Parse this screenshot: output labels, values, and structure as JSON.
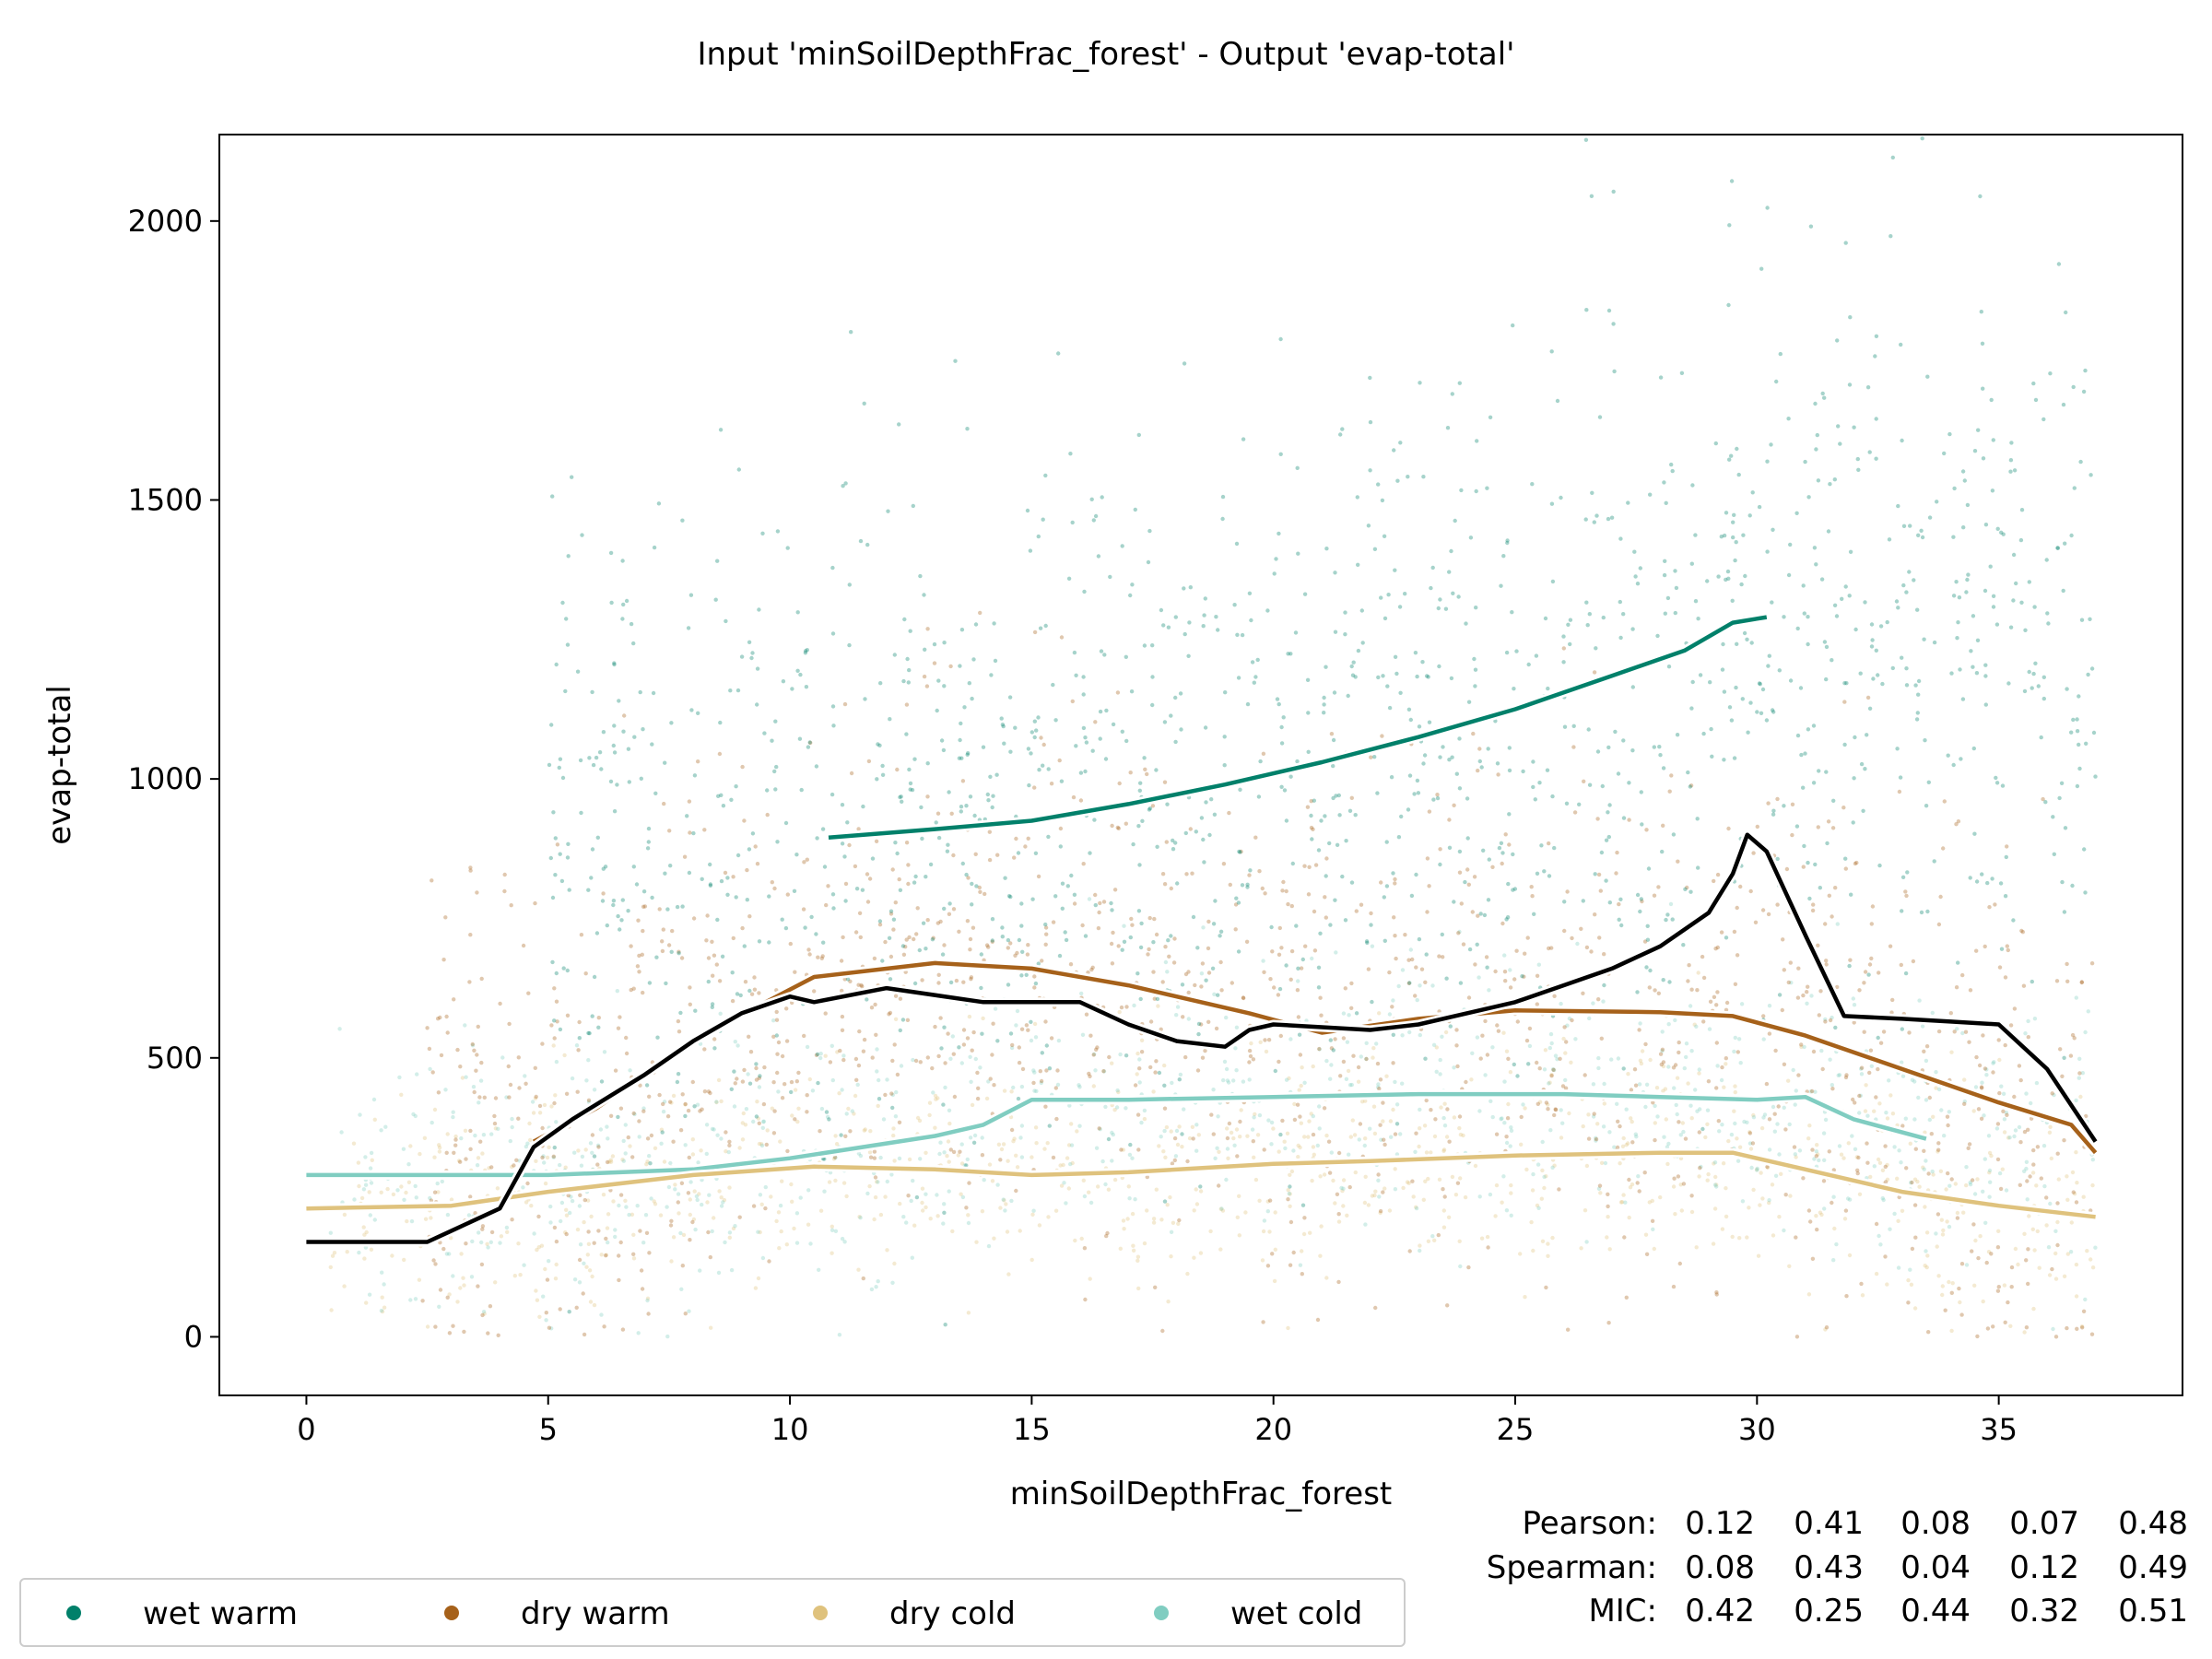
{
  "chart_data": {
    "type": "scatter",
    "title": "Input 'minSoilDepthFrac_forest' - Output 'evap-total'",
    "xlabel": "minSoilDepthFrac_forest",
    "ylabel": "evap-total",
    "xlim": [
      -1.8,
      38.8
    ],
    "ylim": [
      -105,
      2155
    ],
    "xticks": [
      0,
      5,
      10,
      15,
      20,
      25,
      30,
      35
    ],
    "yticks": [
      0,
      500,
      1000,
      1500,
      2000
    ],
    "grid": false,
    "legend_position": "bottom-left",
    "legend": [
      {
        "label": "wet warm",
        "color": "#01806a"
      },
      {
        "label": "dry warm",
        "color": "#a6611a"
      },
      {
        "label": "dry cold",
        "color": "#dfc27d"
      },
      {
        "label": "wet cold",
        "color": "#80cdc1"
      }
    ],
    "overall_color": "#000000",
    "scatter_description_counts": {
      "wet warm": 1400,
      "dry warm": 1400,
      "dry cold": 900,
      "wet cold": 900
    },
    "series": [
      {
        "name": "overall",
        "color": "#000000",
        "x": [
          0,
          2.5,
          3,
          4,
          4.7,
          5.5,
          7,
          8,
          9,
          10,
          10.5,
          12,
          14,
          16,
          17,
          18,
          19,
          19.5,
          20,
          21,
          22,
          23,
          24,
          25,
          26,
          27,
          28,
          29,
          29.5,
          29.8,
          30.2,
          31,
          31.8,
          33,
          34,
          35,
          36,
          37
        ],
        "y": [
          170,
          170,
          190,
          230,
          340,
          390,
          470,
          530,
          580,
          610,
          600,
          625,
          600,
          600,
          560,
          530,
          520,
          550,
          560,
          555,
          550,
          560,
          580,
          600,
          630,
          660,
          700,
          760,
          830,
          900,
          870,
          720,
          575,
          570,
          565,
          560,
          480,
          350
        ]
      },
      {
        "name": "wet warm",
        "color": "#01806a",
        "x": [
          10.8,
          13,
          15,
          17,
          19,
          21,
          23,
          25,
          27,
          28.5,
          29.5,
          30.2
        ],
        "y": [
          895,
          910,
          925,
          955,
          990,
          1030,
          1075,
          1125,
          1185,
          1230,
          1280,
          1290
        ]
      },
      {
        "name": "dry warm",
        "color": "#a6611a",
        "x": [
          4.7,
          6,
          8,
          9.5,
          10.5,
          13,
          15,
          17,
          19.5,
          21,
          23,
          25,
          28,
          29.5,
          31,
          33,
          35,
          36.5,
          37
        ],
        "y": [
          350,
          410,
          530,
          600,
          645,
          670,
          660,
          630,
          580,
          545,
          570,
          585,
          582,
          575,
          540,
          480,
          420,
          380,
          330
        ]
      },
      {
        "name": "dry cold",
        "color": "#dfc27d",
        "x": [
          0,
          3,
          5,
          8,
          10.5,
          13,
          15,
          17,
          20,
          22,
          25,
          28,
          29.5,
          31,
          33,
          35,
          37
        ],
        "y": [
          230,
          235,
          260,
          290,
          305,
          300,
          290,
          295,
          310,
          315,
          325,
          330,
          330,
          300,
          260,
          235,
          215
        ]
      },
      {
        "name": "wet cold",
        "color": "#80cdc1",
        "x": [
          0,
          3,
          5,
          8,
          10,
          13,
          14,
          15,
          17,
          20,
          23,
          26,
          28,
          30,
          31,
          32,
          33.5
        ],
        "y": [
          290,
          290,
          290,
          300,
          320,
          360,
          380,
          425,
          425,
          430,
          435,
          435,
          430,
          425,
          430,
          390,
          355
        ]
      }
    ],
    "stats": {
      "rows": [
        {
          "label": "Pearson:",
          "values": [
            "0.12",
            "0.41",
            "0.08",
            "0.07",
            "0.48"
          ]
        },
        {
          "label": "Spearman:",
          "values": [
            "0.08",
            "0.43",
            "0.04",
            "0.12",
            "0.49"
          ]
        },
        {
          "label": "MIC:",
          "values": [
            "0.42",
            "0.25",
            "0.44",
            "0.32",
            "0.51"
          ]
        }
      ],
      "colors": [
        "#000000",
        "#01806a",
        "#a6611a",
        "#dfc27d",
        "#80cdc1"
      ]
    }
  }
}
